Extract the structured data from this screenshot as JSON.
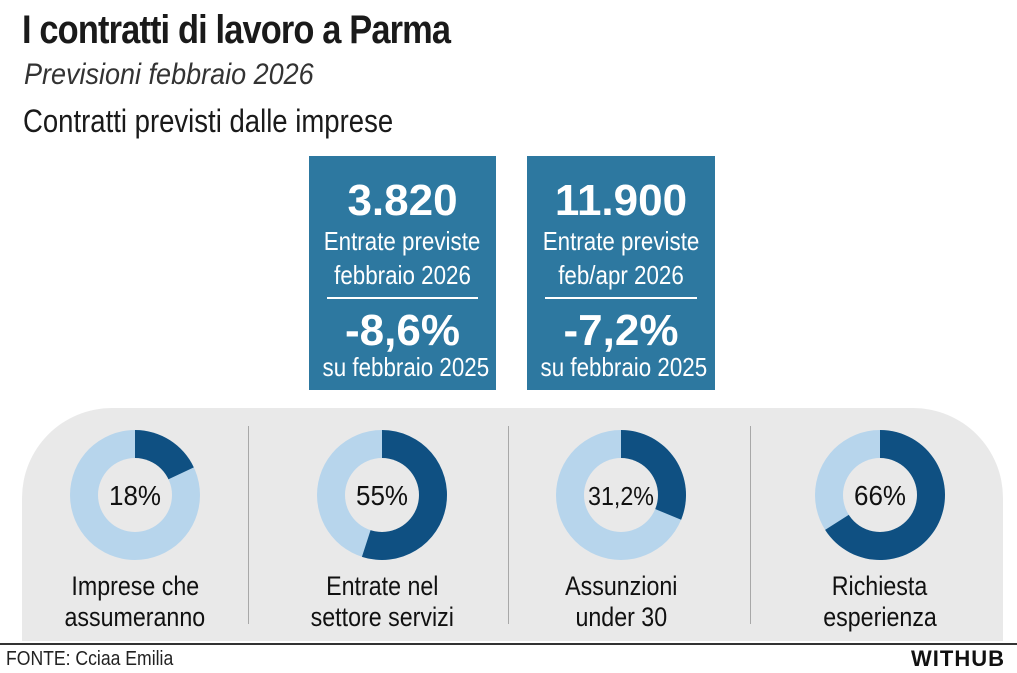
{
  "header": {
    "title": "I contratti di lavoro a Parma",
    "subtitle": "Previsioni febbraio 2026",
    "section": "Contratti previsti dalle imprese"
  },
  "stats": [
    {
      "value": "3.820",
      "line1": "Entrate previste",
      "line2": "febbraio 2026",
      "change": "-8,6%",
      "compare": "su febbraio 2025"
    },
    {
      "value": "11.900",
      "line1": "Entrate previste",
      "line2": "feb/apr 2026",
      "change": "-7,2%",
      "compare": "su febbraio 2025"
    }
  ],
  "chart_data": {
    "type": "pie",
    "donuts": [
      {
        "value": 18,
        "label_text": "18%",
        "caption": [
          "Imprese che",
          "assumeranno"
        ]
      },
      {
        "value": 55,
        "label_text": "55%",
        "caption": [
          "Entrate nel",
          "settore servizi"
        ]
      },
      {
        "value": 31.2,
        "label_text": "31,2%",
        "caption": [
          "Assunzioni",
          "under 30"
        ]
      },
      {
        "value": 66,
        "label_text": "66%",
        "caption": [
          "Richiesta",
          "esperienza"
        ]
      }
    ],
    "colors": {
      "highlight": "#0f5082",
      "rest": "#b7d5ec",
      "hole": "#e9e9e9"
    }
  },
  "colors": {
    "stat_box": "#2d78a0",
    "panel": "#e9e9e9"
  },
  "footer": {
    "source": "FONTE: Cciaa Emilia",
    "brand": "WITHUB"
  }
}
